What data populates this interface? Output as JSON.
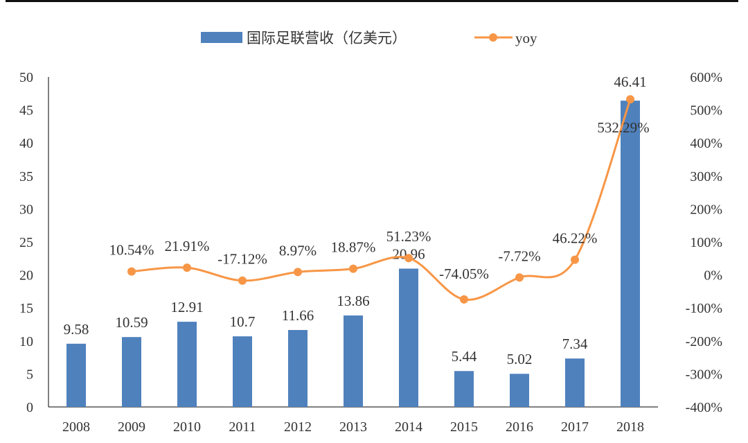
{
  "chart_data": {
    "type": "bar+line",
    "categories": [
      "2008",
      "2009",
      "2010",
      "2011",
      "2012",
      "2013",
      "2014",
      "2015",
      "2016",
      "2017",
      "2018"
    ],
    "series": [
      {
        "name": "国际足联营收（亿美元）",
        "type": "bar",
        "axis": "left",
        "color": "#4F81BD",
        "values": [
          9.58,
          10.59,
          12.91,
          10.7,
          11.66,
          13.86,
          20.96,
          5.44,
          5.02,
          7.34,
          46.41
        ],
        "labels": [
          "9.58",
          "10.59",
          "12.91",
          "10.7",
          "11.66",
          "13.86",
          "20.96",
          "5.44",
          "5.02",
          "7.34",
          "46.41"
        ]
      },
      {
        "name": "yoy",
        "type": "line",
        "axis": "right",
        "color": "#F79646",
        "values": [
          null,
          10.54,
          21.91,
          -17.12,
          8.97,
          18.87,
          51.23,
          -74.05,
          -7.72,
          46.22,
          532.29
        ],
        "labels": [
          "",
          "10.54%",
          "21.91%",
          "-17.12%",
          "8.97%",
          "18.87%",
          "51.23%",
          "-74.05%",
          "-7.72%",
          "46.22%",
          "532.29%"
        ]
      }
    ],
    "left_axis": {
      "min": 0,
      "max": 50,
      "ticks": [
        "0",
        "5",
        "10",
        "15",
        "20",
        "25",
        "30",
        "35",
        "40",
        "45",
        "50"
      ]
    },
    "right_axis": {
      "min": -400,
      "max": 600,
      "ticks": [
        "-400%",
        "-300%",
        "-200%",
        "-100%",
        "0%",
        "100%",
        "200%",
        "300%",
        "400%",
        "500%",
        "600%"
      ]
    },
    "legend": {
      "position": "top",
      "items": [
        "国际足联营收（亿美元）",
        "yoy"
      ]
    },
    "grid": false
  }
}
